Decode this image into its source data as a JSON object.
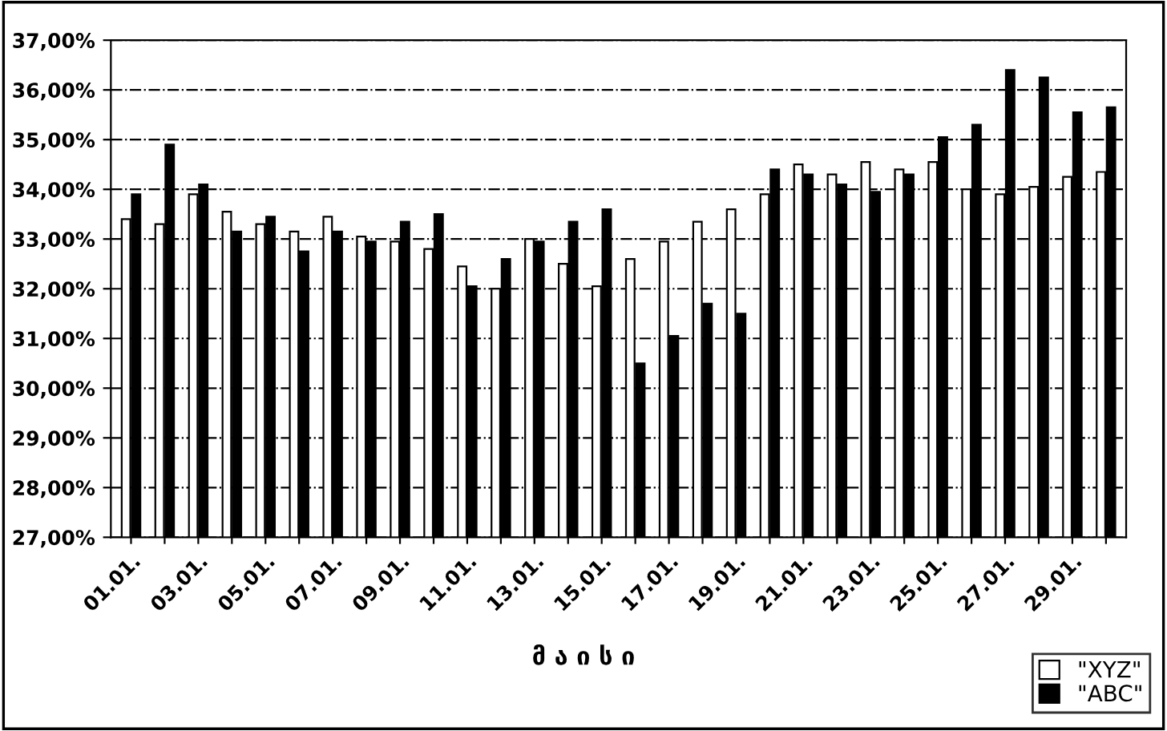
{
  "chart_data": {
    "type": "bar",
    "xlabel": "მ ა ი ს ი",
    "categories": [
      "01.01.",
      null,
      "03.01.",
      null,
      "05.01.",
      null,
      "07.01.",
      null,
      "09.01.",
      null,
      "11.01.",
      null,
      "13.01.",
      null,
      "15.01.",
      null,
      "17.01.",
      null,
      "19.01.",
      null,
      "21.01.",
      null,
      "23.01.",
      null,
      "25.01.",
      null,
      "27.01.",
      null,
      "29.01.",
      null
    ],
    "series": [
      {
        "name": "\"XYZ\"",
        "color": "#ffffff",
        "values": [
          33.4,
          33.3,
          33.9,
          33.55,
          33.3,
          33.15,
          33.45,
          33.05,
          32.95,
          32.8,
          32.45,
          32.0,
          33.0,
          32.5,
          32.05,
          32.6,
          32.95,
          33.35,
          33.6,
          33.9,
          34.5,
          34.3,
          34.55,
          34.4,
          34.55,
          34.0,
          33.9,
          34.05,
          34.25,
          34.35
        ]
      },
      {
        "name": "\"ABC\"",
        "color": "#000000",
        "values": [
          33.9,
          34.9,
          34.1,
          33.15,
          33.45,
          32.75,
          33.15,
          32.95,
          33.35,
          33.5,
          32.05,
          32.6,
          32.95,
          33.35,
          33.6,
          30.5,
          31.05,
          31.7,
          31.5,
          34.4,
          34.3,
          34.1,
          33.95,
          34.3,
          35.05,
          35.3,
          36.4,
          36.25,
          35.55,
          35.65
        ]
      }
    ],
    "ylim": [
      27,
      37
    ],
    "yticks": [
      {
        "value": 27,
        "label": "27,00%"
      },
      {
        "value": 28,
        "label": "28,00%"
      },
      {
        "value": 29,
        "label": "29,00%"
      },
      {
        "value": 30,
        "label": "30,00%"
      },
      {
        "value": 31,
        "label": "31,00%"
      },
      {
        "value": 32,
        "label": "32,00%"
      },
      {
        "value": 33,
        "label": "33,00%"
      },
      {
        "value": 34,
        "label": "34,00%"
      },
      {
        "value": 35,
        "label": "35,00%"
      },
      {
        "value": 36,
        "label": "36,00%"
      },
      {
        "value": 37,
        "label": "37,00%"
      }
    ],
    "grid": "y",
    "legend": "bottom right"
  }
}
